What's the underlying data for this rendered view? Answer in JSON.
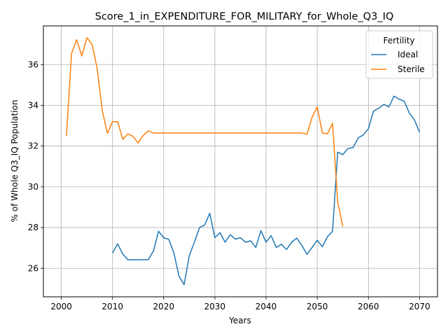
{
  "chart_data": {
    "type": "line",
    "title": "Score_1_in_EXPENDITURE_FOR_MILITARY_for_Whole_Q3_IQ",
    "xlabel": "Years",
    "ylabel": "% of Whole Q3_IQ Population",
    "xlim": [
      1996.5,
      2073.5
    ],
    "ylim": [
      24.6,
      37.9
    ],
    "xticks": [
      2000,
      2010,
      2020,
      2030,
      2040,
      2050,
      2060,
      2070
    ],
    "yticks": [
      26,
      28,
      30,
      32,
      34,
      36
    ],
    "grid": true,
    "legend": {
      "title": "Fertility",
      "placement": "top-right"
    },
    "series": [
      {
        "name": "Ideal",
        "color": "#1f77b4",
        "x": [
          2010,
          2011,
          2012,
          2013,
          2014,
          2015,
          2016,
          2017,
          2018,
          2019,
          2020,
          2021,
          2022,
          2023,
          2024,
          2025,
          2026,
          2027,
          2028,
          2029,
          2030,
          2031,
          2032,
          2033,
          2034,
          2035,
          2036,
          2037,
          2038,
          2039,
          2040,
          2041,
          2042,
          2043,
          2044,
          2045,
          2046,
          2047,
          2048,
          2049,
          2050,
          2051,
          2052,
          2053,
          2054,
          2055,
          2056,
          2057,
          2058,
          2059,
          2060,
          2061,
          2062,
          2063,
          2064,
          2065,
          2066,
          2067,
          2068,
          2069,
          2070
        ],
        "values": [
          26.75,
          27.2,
          26.7,
          26.42,
          26.42,
          26.42,
          26.42,
          26.42,
          26.85,
          27.82,
          27.5,
          27.42,
          26.75,
          25.6,
          25.2,
          26.62,
          27.28,
          28.0,
          28.12,
          28.7,
          27.5,
          27.75,
          27.28,
          27.65,
          27.43,
          27.5,
          27.28,
          27.35,
          27.02,
          27.85,
          27.28,
          27.6,
          27.02,
          27.18,
          26.92,
          27.28,
          27.48,
          27.12,
          26.68,
          27.02,
          27.38,
          27.06,
          27.55,
          27.82,
          31.7,
          31.58,
          31.88,
          31.92,
          32.4,
          32.55,
          32.85,
          33.72,
          33.85,
          34.05,
          33.92,
          34.45,
          34.3,
          34.2,
          33.62,
          33.28,
          32.68
        ]
      },
      {
        "name": "Sterile",
        "color": "#ff7f0e",
        "x": [
          2001,
          2002,
          2003,
          2004,
          2005,
          2006,
          2007,
          2008,
          2009,
          2010,
          2011,
          2012,
          2013,
          2014,
          2015,
          2016,
          2017,
          2018,
          2019,
          2020,
          2021,
          2022,
          2023,
          2024,
          2025,
          2026,
          2027,
          2028,
          2029,
          2030,
          2031,
          2032,
          2033,
          2034,
          2035,
          2036,
          2037,
          2038,
          2039,
          2040,
          2041,
          2042,
          2043,
          2044,
          2045,
          2046,
          2047,
          2048,
          2049,
          2050,
          2051,
          2052,
          2053,
          2054,
          2055
        ],
        "values": [
          32.5,
          36.55,
          37.22,
          36.42,
          37.32,
          37.0,
          35.82,
          33.75,
          32.62,
          33.2,
          33.2,
          32.33,
          32.6,
          32.48,
          32.15,
          32.52,
          32.75,
          32.64,
          32.64,
          32.64,
          32.64,
          32.64,
          32.64,
          32.64,
          32.64,
          32.64,
          32.64,
          32.64,
          32.64,
          32.64,
          32.64,
          32.64,
          32.64,
          32.64,
          32.64,
          32.64,
          32.64,
          32.64,
          32.64,
          32.64,
          32.64,
          32.64,
          32.64,
          32.64,
          32.64,
          32.64,
          32.64,
          32.58,
          33.42,
          33.92,
          32.65,
          32.6,
          33.12,
          29.25,
          28.05
        ]
      }
    ]
  }
}
